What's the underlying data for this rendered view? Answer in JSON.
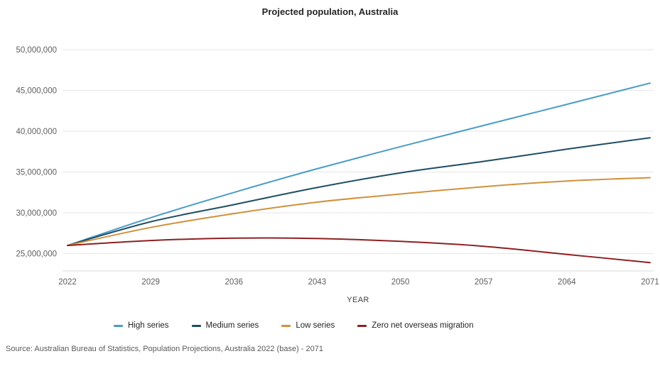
{
  "title": "Projected population, Australia",
  "source": "Source: Australian Bureau of Statistics, Population Projections, Australia 2022 (base) - 2071",
  "colors": {
    "high_series": "#4A9CC6",
    "medium_series": "#1F4E63",
    "low_series": "#D0913C",
    "zero_nom": "#8E2023",
    "gridline": "#E6E6E6",
    "axis_line": "#D9D9D9",
    "tick_label": "#605E5C",
    "title_text": "#252525",
    "source_text": "#595959"
  },
  "chart_data": {
    "type": "line",
    "title": "Projected population, Australia",
    "xlabel": "YEAR",
    "ylabel": "",
    "grid": "horizontal",
    "legend_position": "bottom",
    "x": [
      2022,
      2029,
      2036,
      2043,
      2050,
      2057,
      2064,
      2071
    ],
    "x_tick_labels": [
      "2022",
      "2029",
      "2036",
      "2043",
      "2050",
      "2057",
      "2064",
      "2071"
    ],
    "xlim": [
      2022,
      2071
    ],
    "ylim": [
      25000000,
      50000000
    ],
    "y_ticks": [
      50000000,
      45000000,
      40000000,
      35000000,
      30000000,
      25000000
    ],
    "y_tick_labels": [
      "50,000,000",
      "45,000,000",
      "40,000,000",
      "35,000,000",
      "30,000,000",
      "25,000,000"
    ],
    "series": [
      {
        "name": "High series",
        "color": "#4A9CC6",
        "values": [
          26000000,
          29400000,
          32500000,
          35400000,
          38100000,
          40700000,
          43300000,
          45900000
        ]
      },
      {
        "name": "Medium series",
        "color": "#1F4E63",
        "values": [
          26000000,
          28900000,
          31000000,
          33100000,
          34900000,
          36300000,
          37800000,
          39200000
        ]
      },
      {
        "name": "Low series",
        "color": "#D0913C",
        "values": [
          26000000,
          28200000,
          29900000,
          31300000,
          32300000,
          33200000,
          33900000,
          34300000
        ]
      },
      {
        "name": "Zero net overseas migration",
        "color": "#8E2023",
        "values": [
          26000000,
          26600000,
          26900000,
          26850000,
          26500000,
          25900000,
          24900000,
          23900000
        ]
      }
    ]
  }
}
